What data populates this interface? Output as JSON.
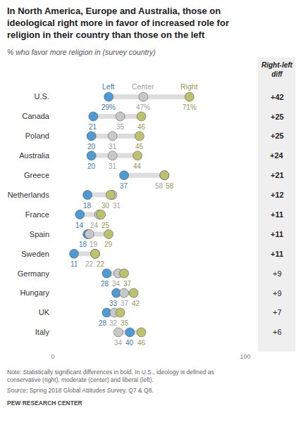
{
  "chart_data": {
    "type": "dot",
    "title": "In North America, Europe and Australia, those on ideological right more in favor of increased role for religion in their country than those on the left",
    "subtitle": "% who favor more religion in (survey country)",
    "categories": [
      "U.S.",
      "Canada",
      "Poland",
      "Australia",
      "Greece",
      "Netherlands",
      "France",
      "Spain",
      "Sweden",
      "Germany",
      "Hungary",
      "UK",
      "Italy"
    ],
    "series": [
      {
        "name": "Left",
        "color": "#4e9ad4",
        "values": [
          29,
          21,
          20,
          20,
          37,
          18,
          14,
          18,
          11,
          28,
          33,
          28,
          40
        ],
        "value_labels": [
          "29%",
          "21",
          "20",
          "20",
          "37",
          "18",
          "14",
          "18",
          "11",
          "28",
          "33",
          "28",
          "40"
        ]
      },
      {
        "name": "Center",
        "color": "#c8c8c8",
        "values": [
          47,
          35,
          31,
          31,
          58,
          31,
          24,
          19,
          22,
          34,
          37,
          32,
          34
        ],
        "value_labels": [
          "47%",
          "35",
          "31",
          "31",
          "58",
          "31",
          "24",
          "19",
          "22",
          "34",
          "37",
          "32",
          "34"
        ]
      },
      {
        "name": "Right",
        "color": "#bcc16e",
        "values": [
          71,
          46,
          45,
          44,
          58,
          30,
          25,
          29,
          22,
          37,
          42,
          35,
          46
        ],
        "value_labels": [
          "71%",
          "46",
          "45",
          "44",
          "58",
          "30",
          "25",
          "29",
          "22",
          "37",
          "42",
          "35",
          "46"
        ]
      }
    ],
    "xlim": [
      0,
      100
    ],
    "xticks": [
      0,
      100
    ],
    "grid": false,
    "data_labels": true,
    "diff": {
      "title": "Right-left diff",
      "values": [
        42,
        25,
        25,
        24,
        21,
        12,
        11,
        11,
        11,
        9,
        9,
        7,
        6
      ],
      "value_labels": [
        "+42",
        "+25",
        "+25",
        "+24",
        "+21",
        "+12",
        "+11",
        "+11",
        "+11",
        "+9",
        "+9",
        "+7",
        "+6"
      ],
      "significant": [
        true,
        true,
        true,
        true,
        true,
        true,
        true,
        true,
        true,
        false,
        false,
        false,
        false
      ]
    },
    "note": "Note: Statistically significant differences in bold. In U.S., ideology is defined as conservative (right), moderate (center) and liberal (left).",
    "source": "Source: Spring 2018 Global Attitudes Survey. Q7 & Q8.",
    "credit": "PEW RESEARCH CENTER"
  }
}
